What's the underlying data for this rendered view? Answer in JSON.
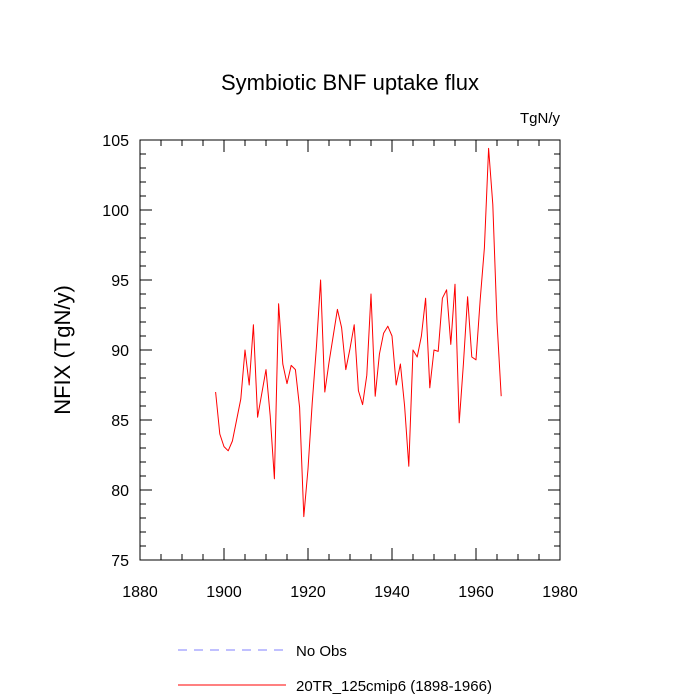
{
  "chart_data": {
    "type": "line",
    "title": "Symbiotic BNF uptake flux",
    "units": "TgN/y",
    "xlabel": "",
    "ylabel": "NFIX  (TgN/y)",
    "xlim": [
      1880,
      1980
    ],
    "ylim": [
      75,
      105
    ],
    "xticks": [
      1880,
      1900,
      1920,
      1940,
      1960,
      1980
    ],
    "yticks": [
      75,
      80,
      85,
      90,
      95,
      100,
      105
    ],
    "xminor_step": 5,
    "yminor_step": 1,
    "legend": [
      {
        "label": "No Obs",
        "color": "#8080ff",
        "style": "dashed"
      },
      {
        "label": "20TR_125cmip6 (1898-1966)",
        "color": "#ff0000",
        "style": "solid"
      }
    ],
    "series": [
      {
        "name": "20TR_125cmip6 (1898-1966)",
        "color": "#ff0000",
        "x": [
          1898,
          1899,
          1900,
          1901,
          1902,
          1903,
          1904,
          1905,
          1906,
          1907,
          1908,
          1909,
          1910,
          1911,
          1912,
          1913,
          1914,
          1915,
          1916,
          1917,
          1918,
          1919,
          1920,
          1921,
          1922,
          1923,
          1924,
          1925,
          1926,
          1927,
          1928,
          1929,
          1930,
          1931,
          1932,
          1933,
          1934,
          1935,
          1936,
          1937,
          1938,
          1939,
          1940,
          1941,
          1942,
          1943,
          1944,
          1945,
          1946,
          1947,
          1948,
          1949,
          1950,
          1951,
          1952,
          1953,
          1954,
          1955,
          1956,
          1957,
          1958,
          1959,
          1960,
          1961,
          1962,
          1963,
          1964,
          1965,
          1966
        ],
        "values": [
          87.0,
          84.0,
          83.1,
          82.8,
          83.5,
          85.0,
          86.5,
          90.0,
          87.5,
          91.8,
          85.2,
          86.9,
          88.6,
          85.3,
          80.8,
          93.3,
          89.0,
          87.6,
          88.9,
          88.6,
          85.9,
          78.1,
          81.5,
          86.2,
          90.2,
          95.0,
          87.0,
          89.1,
          91.0,
          92.9,
          91.6,
          88.6,
          90.1,
          91.8,
          87.1,
          86.1,
          88.2,
          94.0,
          86.7,
          89.7,
          91.2,
          91.7,
          91.0,
          87.5,
          89.0,
          86.0,
          81.7,
          90.0,
          89.5,
          91.0,
          93.7,
          87.3,
          90.0,
          89.9,
          93.7,
          94.3,
          90.4,
          94.7,
          84.8,
          89.0,
          93.8,
          89.5,
          89.3,
          93.6,
          97.3,
          104.4,
          100.4,
          92.0,
          86.7
        ]
      }
    ]
  }
}
